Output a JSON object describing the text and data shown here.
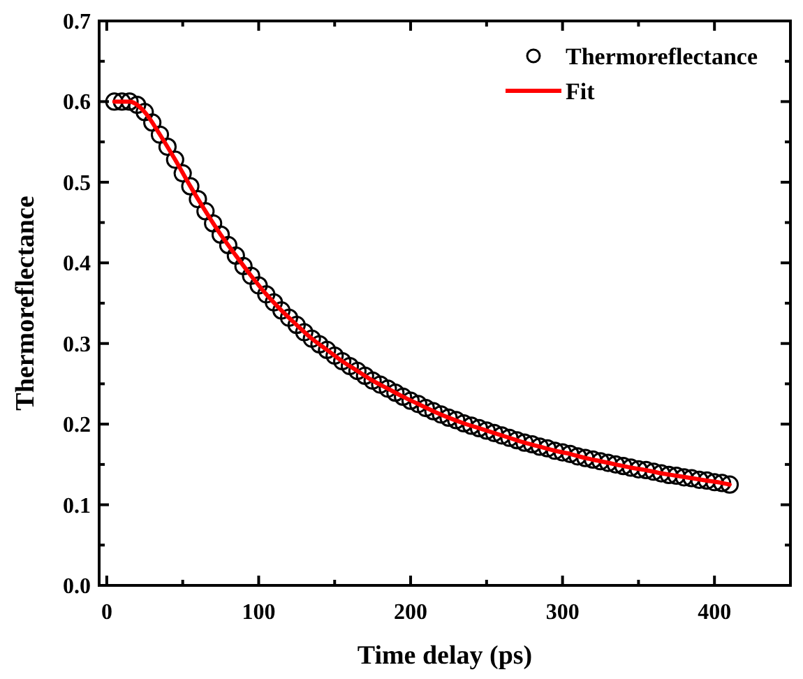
{
  "chart_data": {
    "type": "scatter",
    "xlabel": "Time delay (ps)",
    "ylabel": "Thermoreflectance",
    "x": [
      5,
      10,
      15,
      20,
      25,
      30,
      35,
      40,
      45,
      50,
      55,
      60,
      65,
      70,
      75,
      80,
      85,
      90,
      95,
      100,
      105,
      110,
      115,
      120,
      125,
      130,
      135,
      140,
      145,
      150,
      155,
      160,
      165,
      170,
      175,
      180,
      185,
      190,
      195,
      200,
      205,
      210,
      215,
      220,
      225,
      230,
      235,
      240,
      245,
      250,
      255,
      260,
      265,
      270,
      275,
      280,
      285,
      290,
      295,
      300,
      305,
      310,
      315,
      320,
      325,
      330,
      335,
      340,
      345,
      350,
      355,
      360,
      365,
      370,
      375,
      380,
      385,
      390,
      395,
      400,
      405,
      410
    ],
    "series": [
      {
        "name": "Thermoreflectance",
        "marker": "circle",
        "color": "#000000",
        "values": [
          0.6,
          0.6,
          0.6,
          0.596,
          0.587,
          0.574,
          0.559,
          0.544,
          0.528,
          0.511,
          0.495,
          0.479,
          0.464,
          0.449,
          0.435,
          0.422,
          0.409,
          0.396,
          0.384,
          0.372,
          0.361,
          0.351,
          0.341,
          0.332,
          0.323,
          0.314,
          0.306,
          0.299,
          0.292,
          0.285,
          0.278,
          0.272,
          0.266,
          0.26,
          0.254,
          0.249,
          0.244,
          0.239,
          0.234,
          0.229,
          0.225,
          0.22,
          0.216,
          0.212,
          0.208,
          0.205,
          0.201,
          0.198,
          0.195,
          0.192,
          0.189,
          0.186,
          0.183,
          0.18,
          0.177,
          0.175,
          0.172,
          0.17,
          0.167,
          0.165,
          0.163,
          0.16,
          0.158,
          0.156,
          0.154,
          0.152,
          0.15,
          0.148,
          0.146,
          0.144,
          0.143,
          0.141,
          0.139,
          0.137,
          0.136,
          0.134,
          0.133,
          0.131,
          0.13,
          0.128,
          0.127,
          0.125
        ]
      },
      {
        "name": "Fit",
        "type": "line",
        "line_style": "solid",
        "color": "#ff0000",
        "x": [
          5,
          15,
          25,
          35,
          45,
          55,
          65,
          75,
          85,
          95,
          105,
          115,
          125,
          135,
          145,
          155,
          165,
          175,
          185,
          195,
          205,
          215,
          225,
          235,
          245,
          255,
          265,
          275,
          285,
          295,
          305,
          315,
          325,
          335,
          345,
          355,
          365,
          375,
          385,
          395,
          405,
          410
        ],
        "values": [
          0.6,
          0.6,
          0.587,
          0.559,
          0.528,
          0.495,
          0.464,
          0.435,
          0.409,
          0.384,
          0.361,
          0.341,
          0.323,
          0.306,
          0.292,
          0.278,
          0.266,
          0.254,
          0.244,
          0.234,
          0.225,
          0.216,
          0.208,
          0.201,
          0.195,
          0.189,
          0.183,
          0.177,
          0.172,
          0.167,
          0.163,
          0.158,
          0.154,
          0.15,
          0.146,
          0.143,
          0.139,
          0.136,
          0.133,
          0.13,
          0.127,
          0.125
        ]
      }
    ],
    "xlim": [
      -5,
      450
    ],
    "xticks": [
      0,
      {
        "value": 50,
        "label": null
      },
      100,
      {
        "value": 150,
        "label": null
      },
      200,
      {
        "value": 250,
        "label": null
      },
      300,
      {
        "value": 350,
        "label": null
      },
      400,
      {
        "value": 450,
        "label": null
      }
    ],
    "ylim": [
      0,
      0.7
    ],
    "yticks": [
      {
        "value": 0,
        "label": "0.0"
      },
      {
        "value": 0.05,
        "label": null
      },
      0.1,
      {
        "value": 0.15,
        "label": null
      },
      0.2,
      {
        "value": 0.25,
        "label": null
      },
      0.3,
      {
        "value": 0.35,
        "label": null
      },
      0.4,
      {
        "value": 0.45,
        "label": null
      },
      0.5,
      {
        "value": 0.55,
        "label": null
      },
      0.6,
      {
        "value": 0.65,
        "label": null
      },
      0.7
    ],
    "grid": false,
    "legend": "top right"
  }
}
